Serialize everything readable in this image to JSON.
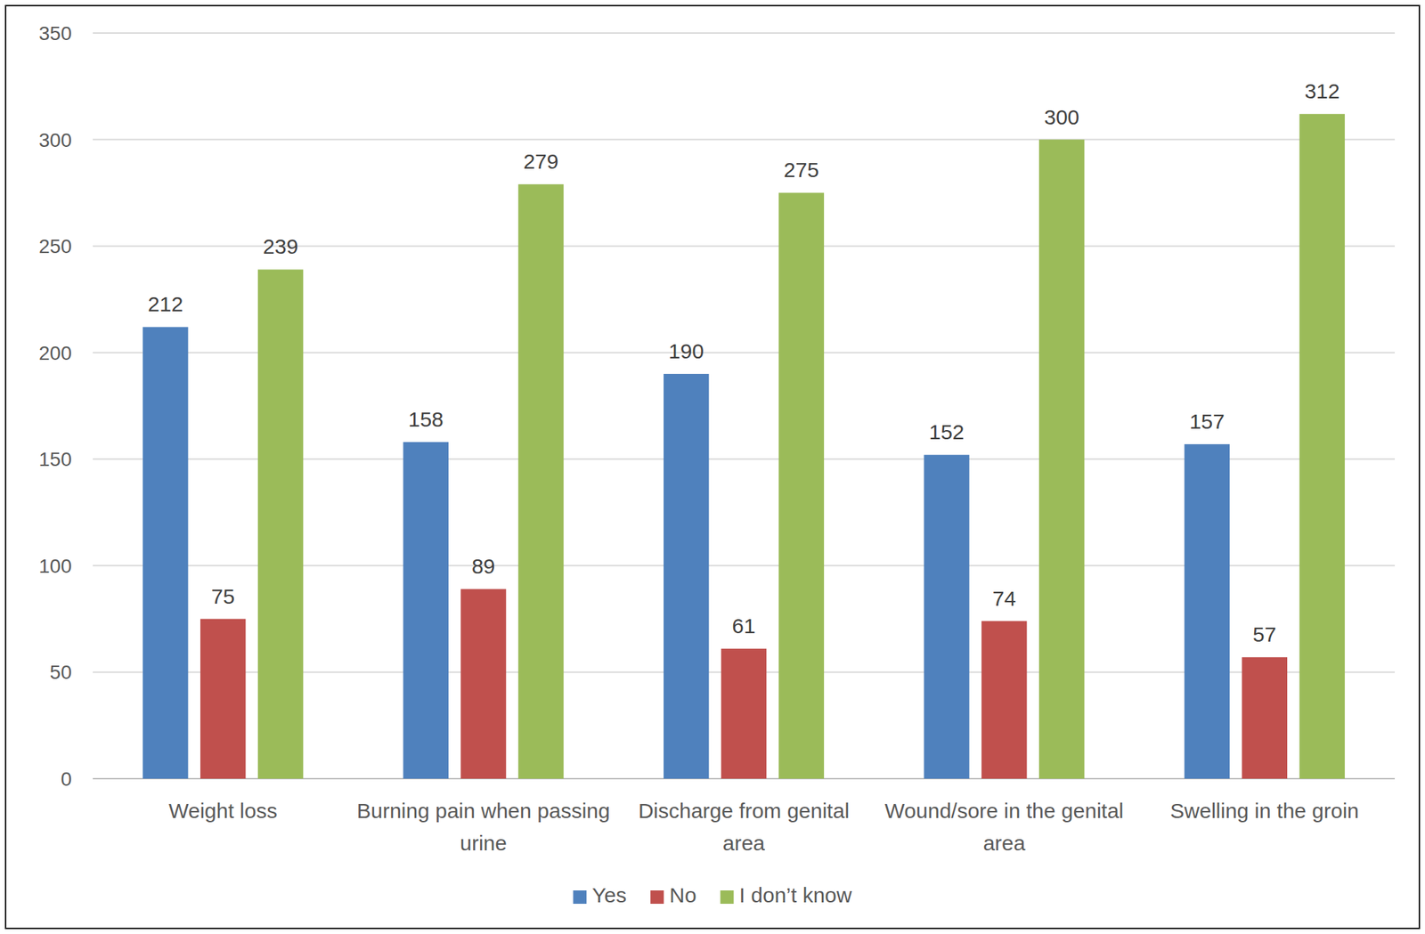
{
  "chart_data": {
    "type": "bar",
    "categories": [
      "Weight loss",
      "Burning pain when passing urine",
      "Discharge from genital area",
      "Wound/sore in the genital area",
      "Swelling in the groin"
    ],
    "series": [
      {
        "name": "Yes",
        "color": "#4f81bd",
        "values": [
          212,
          158,
          190,
          152,
          157
        ]
      },
      {
        "name": "No",
        "color": "#c0504d",
        "values": [
          75,
          89,
          61,
          74,
          57
        ]
      },
      {
        "name": "I don’t know",
        "color": "#9bbb59",
        "values": [
          239,
          279,
          275,
          300,
          312
        ]
      }
    ],
    "ylim": [
      0,
      350
    ],
    "yticks": [
      0,
      50,
      100,
      150,
      200,
      250,
      300,
      350
    ],
    "grid": true,
    "legend": "bottom",
    "data_labels": true
  }
}
